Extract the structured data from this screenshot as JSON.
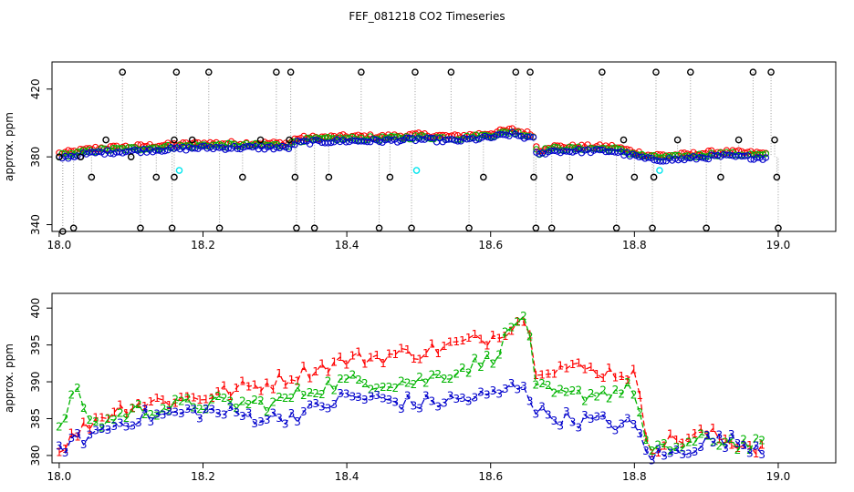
{
  "title": "FEF_081218  CO2 Timeseries",
  "colors": {
    "s1": "#ff0000",
    "s2": "#00b400",
    "s3": "#0000cc",
    "black": "#000000",
    "cyan": "#00e5ee",
    "grey": "#9a9a9a"
  },
  "chart_data": [
    {
      "type": "scatter",
      "panel": "top",
      "title": "",
      "xlabel": "",
      "ylabel": "approx. ppm",
      "xlim": [
        17.99,
        19.08
      ],
      "ylim": [
        336,
        436
      ],
      "xticks": [
        18.0,
        18.2,
        18.4,
        18.6,
        18.8,
        19.0
      ],
      "xtick_labels": [
        "18.0",
        "18.2",
        "18.4",
        "18.6",
        "18.8",
        "19.0"
      ],
      "yticks": [
        340,
        380,
        420
      ],
      "ytick_labels": [
        "340",
        "380",
        "420"
      ],
      "series_note": "red = channel 1, green = channel 2, blue = channel 3 (circles); black circles = out-of-range spikes joined by grey dotted line; cyan = flagged points",
      "knots": [
        [
          18.0,
          380
        ],
        [
          18.02,
          381
        ],
        [
          18.05,
          383
        ],
        [
          18.1,
          384
        ],
        [
          18.15,
          385
        ],
        [
          18.2,
          386
        ],
        [
          18.25,
          386
        ],
        [
          18.3,
          386
        ],
        [
          18.32,
          386
        ],
        [
          18.33,
          389
        ],
        [
          18.4,
          390
        ],
        [
          18.45,
          390
        ],
        [
          18.5,
          391
        ],
        [
          18.55,
          390
        ],
        [
          18.6,
          392
        ],
        [
          18.63,
          394
        ],
        [
          18.66,
          391
        ],
        [
          18.665,
          381
        ],
        [
          18.68,
          384
        ],
        [
          18.72,
          384
        ],
        [
          18.77,
          384
        ],
        [
          18.79,
          382
        ],
        [
          18.82,
          379
        ],
        [
          18.86,
          379
        ],
        [
          18.92,
          381
        ],
        [
          18.98,
          380
        ]
      ],
      "black_points": [
        [
          18.0,
          380
        ],
        [
          18.005,
          336
        ],
        [
          18.02,
          338
        ],
        [
          18.03,
          380
        ],
        [
          18.045,
          368
        ],
        [
          18.065,
          390
        ],
        [
          18.088,
          430
        ],
        [
          18.1,
          380
        ],
        [
          18.113,
          338
        ],
        [
          18.135,
          368
        ],
        [
          18.16,
          390
        ],
        [
          18.163,
          430
        ],
        [
          18.16,
          368
        ],
        [
          18.157,
          338
        ],
        [
          18.185,
          390
        ],
        [
          18.208,
          430
        ],
        [
          18.223,
          338
        ],
        [
          18.255,
          368
        ],
        [
          18.28,
          390
        ],
        [
          18.302,
          430
        ],
        [
          18.32,
          390
        ],
        [
          18.322,
          430
        ],
        [
          18.328,
          368
        ],
        [
          18.33,
          338
        ],
        [
          18.355,
          338
        ],
        [
          18.375,
          368
        ],
        [
          18.42,
          430
        ],
        [
          18.445,
          338
        ],
        [
          18.46,
          368
        ],
        [
          18.49,
          338
        ],
        [
          18.495,
          430
        ],
        [
          18.545,
          430
        ],
        [
          18.57,
          338
        ],
        [
          18.59,
          368
        ],
        [
          18.635,
          430
        ],
        [
          18.655,
          430
        ],
        [
          18.66,
          368
        ],
        [
          18.663,
          338
        ],
        [
          18.685,
          338
        ],
        [
          18.71,
          368
        ],
        [
          18.755,
          430
        ],
        [
          18.775,
          338
        ],
        [
          18.785,
          390
        ],
        [
          18.8,
          368
        ],
        [
          18.825,
          338
        ],
        [
          18.827,
          368
        ],
        [
          18.83,
          430
        ],
        [
          18.86,
          390
        ],
        [
          18.878,
          430
        ],
        [
          18.9,
          338
        ],
        [
          18.92,
          368
        ],
        [
          18.945,
          390
        ],
        [
          18.965,
          430
        ],
        [
          18.99,
          430
        ],
        [
          18.995,
          390
        ],
        [
          18.998,
          368
        ],
        [
          19.0,
          338
        ]
      ],
      "cyan_points": [
        [
          18.167,
          372
        ],
        [
          18.497,
          372
        ],
        [
          18.835,
          372
        ]
      ]
    },
    {
      "type": "line",
      "panel": "bottom",
      "title": "",
      "xlabel": "",
      "ylabel": "approx. ppm",
      "xlim": [
        17.99,
        19.08
      ],
      "ylim": [
        379,
        402
      ],
      "xticks": [
        18.0,
        18.2,
        18.4,
        18.6,
        18.8,
        19.0
      ],
      "xtick_labels": [
        "18.0",
        "18.2",
        "18.4",
        "18.6",
        "18.8",
        "19.0"
      ],
      "yticks": [
        380,
        385,
        390,
        395,
        400
      ],
      "ytick_labels": [
        "380",
        "385",
        "390",
        "395",
        "400"
      ],
      "legend": "points drawn as digits 1, 2, 3 for each channel",
      "series": [
        {
          "name": "1",
          "color": "red",
          "knots": [
            [
              18.0,
              381
            ],
            [
              18.05,
              385
            ],
            [
              18.1,
              387
            ],
            [
              18.2,
              388
            ],
            [
              18.3,
              390
            ],
            [
              18.33,
              391
            ],
            [
              18.4,
              393
            ],
            [
              18.5,
              394
            ],
            [
              18.6,
              396
            ],
            [
              18.65,
              399
            ],
            [
              18.66,
              392
            ],
            [
              18.7,
              392
            ],
            [
              18.8,
              391
            ],
            [
              18.82,
              381
            ],
            [
              18.85,
              382
            ],
            [
              18.9,
              383
            ],
            [
              18.93,
              382
            ],
            [
              18.98,
              381
            ]
          ]
        },
        {
          "name": "2",
          "color": "green",
          "knots": [
            [
              18.0,
              383
            ],
            [
              18.02,
              389
            ],
            [
              18.05,
              384
            ],
            [
              18.1,
              386
            ],
            [
              18.2,
              387
            ],
            [
              18.3,
              387
            ],
            [
              18.35,
              389
            ],
            [
              18.4,
              390
            ],
            [
              18.5,
              390
            ],
            [
              18.6,
              393
            ],
            [
              18.65,
              400
            ],
            [
              18.66,
              389
            ],
            [
              18.7,
              388
            ],
            [
              18.8,
              389
            ],
            [
              18.82,
              380
            ],
            [
              18.85,
              381
            ],
            [
              18.9,
              382
            ],
            [
              18.93,
              382
            ],
            [
              18.98,
              381
            ]
          ]
        },
        {
          "name": "3",
          "color": "blue",
          "knots": [
            [
              18.0,
              381
            ],
            [
              18.05,
              383
            ],
            [
              18.1,
              385
            ],
            [
              18.2,
              386
            ],
            [
              18.3,
              385
            ],
            [
              18.35,
              386
            ],
            [
              18.4,
              388
            ],
            [
              18.5,
              387
            ],
            [
              18.6,
              388
            ],
            [
              18.65,
              390
            ],
            [
              18.66,
              386
            ],
            [
              18.7,
              385
            ],
            [
              18.8,
              384
            ],
            [
              18.82,
              380
            ],
            [
              18.85,
              380
            ],
            [
              18.9,
              382
            ],
            [
              18.93,
              382
            ],
            [
              18.98,
              381
            ]
          ]
        }
      ]
    }
  ]
}
